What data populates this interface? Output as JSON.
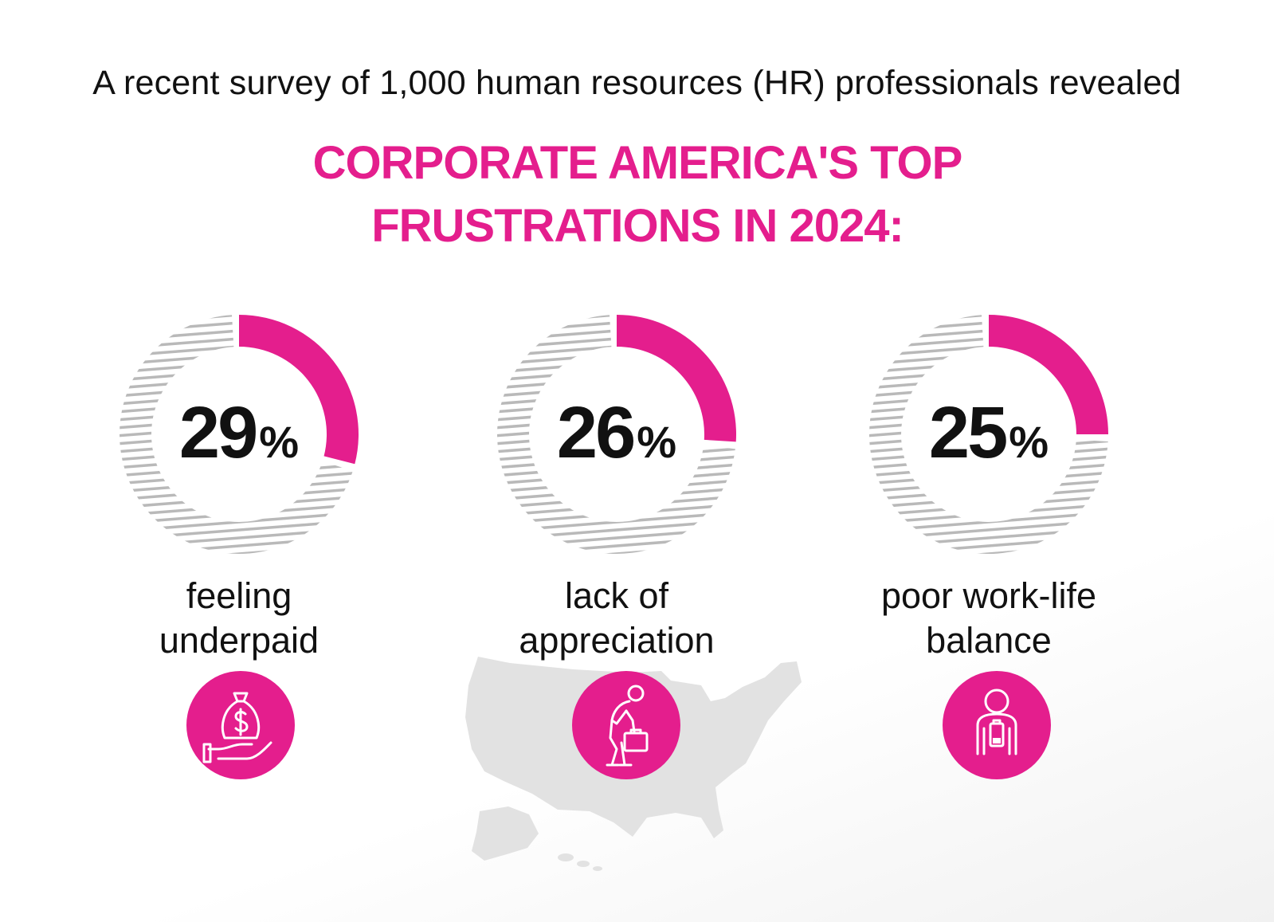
{
  "intro": "A recent survey of 1,000 human resources (HR) professionals revealed",
  "title_line1": "CORPORATE AMERICA'S TOP",
  "title_line2": "FRUSTRATIONS IN 2024:",
  "colors": {
    "accent": "#e41e8d",
    "hatch": "#b9b9b9",
    "map": "#e2e2e2",
    "text": "#111111"
  },
  "chart_data": {
    "type": "pie",
    "unit": "%",
    "items": [
      {
        "value": 29,
        "value_text": "29",
        "pct": "%",
        "label_line1": "feeling",
        "label_line2": "underpaid",
        "icon": "money-bag-hand-icon"
      },
      {
        "value": 26,
        "value_text": "26",
        "pct": "%",
        "label_line1": "lack of",
        "label_line2": "appreciation",
        "icon": "tired-worker-briefcase-icon"
      },
      {
        "value": 25,
        "value_text": "25",
        "pct": "%",
        "label_line1": "poor work-life",
        "label_line2": "balance",
        "icon": "person-low-battery-icon"
      }
    ]
  }
}
